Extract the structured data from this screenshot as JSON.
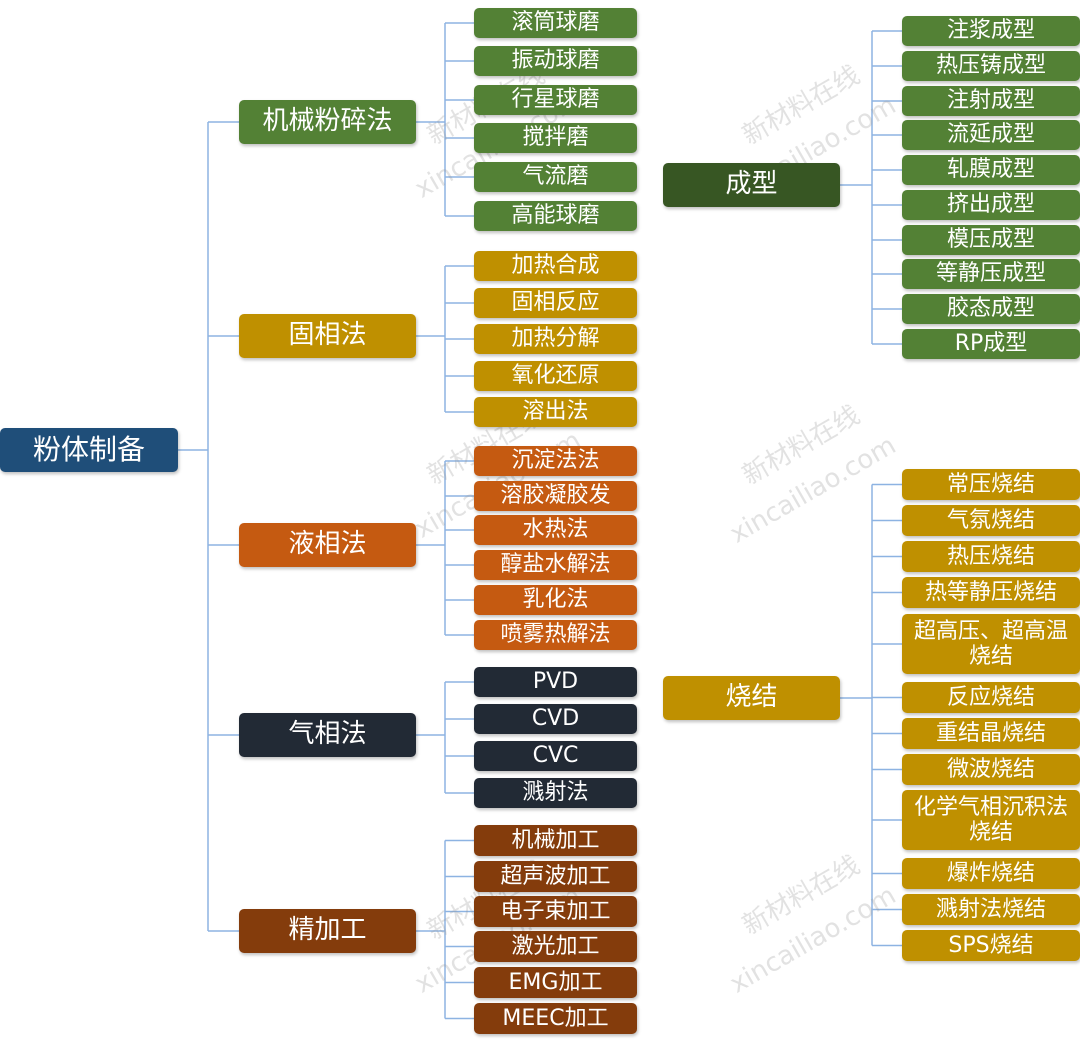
{
  "colors": {
    "root": "#1f4e79",
    "green": "#538135",
    "gold": "#bf9000",
    "orange": "#c55a11",
    "navy": "#222a35",
    "brown": "#843c0c",
    "forming": "#375623",
    "line": "#8db3e2"
  },
  "root": {
    "label": "粉体制备"
  },
  "categories": [
    {
      "key": "mech",
      "label": "机械粉碎法",
      "color": "green",
      "items": [
        "滚筒球磨",
        "振动球磨",
        "行星球磨",
        "搅拌磨",
        "气流磨",
        "高能球磨"
      ]
    },
    {
      "key": "solid",
      "label": "固相法",
      "color": "gold",
      "items": [
        "加热合成",
        "固相反应",
        "加热分解",
        "氧化还原",
        "溶出法"
      ]
    },
    {
      "key": "liquid",
      "label": "液相法",
      "color": "orange",
      "items": [
        "沉淀法法",
        "溶胶凝胶发",
        "水热法",
        "醇盐水解法",
        "乳化法",
        "喷雾热解法"
      ]
    },
    {
      "key": "gas",
      "label": "气相法",
      "color": "navy",
      "items": [
        "PVD",
        "CVD",
        "CVC",
        "溅射法"
      ]
    },
    {
      "key": "fine",
      "label": "精加工",
      "color": "brown",
      "items": [
        "机械加工",
        "超声波加工",
        "电子束加工",
        "激光加工",
        "EMG加工",
        "MEEC加工"
      ]
    }
  ],
  "forming": {
    "label": "成型",
    "color": "forming",
    "item_color": "green",
    "items": [
      "注浆成型",
      "热压铸成型",
      "注射成型",
      "流延成型",
      "轧膜成型",
      "挤出成型",
      "模压成型",
      "等静压成型",
      "胶态成型",
      "RP成型"
    ]
  },
  "sintering": {
    "label": "烧结",
    "color": "gold",
    "item_color": "gold",
    "items": [
      "常压烧结",
      "气氛烧结",
      "热压烧结",
      "热等静压烧结",
      "超高压、超高温烧结",
      "反应烧结",
      "重结晶烧结",
      "微波烧结",
      "化学气相沉积法烧结",
      "爆炸烧结",
      "溅射法烧结",
      "SPS烧结"
    ]
  },
  "watermark": {
    "cn": "新材料在线",
    "en": "xincailiao.com"
  }
}
